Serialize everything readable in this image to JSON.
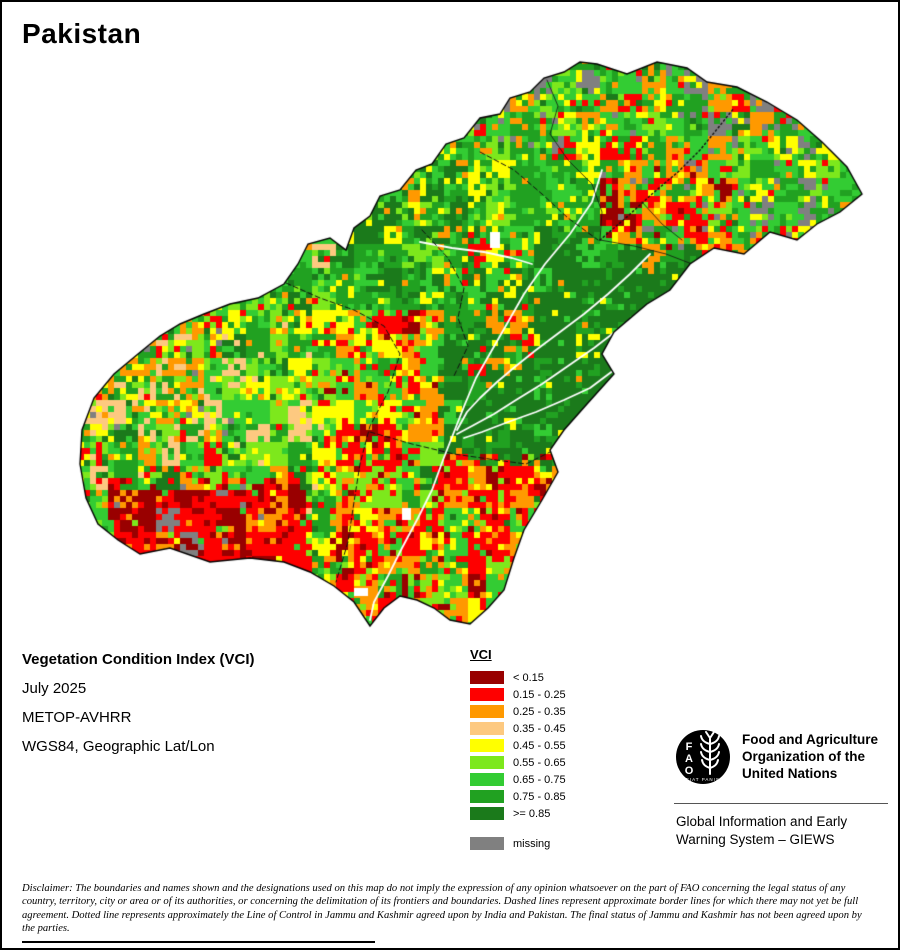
{
  "title": "Pakistan",
  "info": {
    "index_name": "Vegetation Condition Index (VCI)",
    "date": "July 2025",
    "sensor": "METOP-AVHRR",
    "projection": "WGS84, Geographic Lat/Lon"
  },
  "legend": {
    "title": "VCI",
    "entries": [
      {
        "label": "< 0.15",
        "color": "#990000"
      },
      {
        "label": "0.15 - 0.25",
        "color": "#fe0000"
      },
      {
        "label": "0.25 - 0.35",
        "color": "#ff9900"
      },
      {
        "label": "0.35 - 0.45",
        "color": "#fdc980"
      },
      {
        "label": "0.45 - 0.55",
        "color": "#ffff00"
      },
      {
        "label": "0.55 - 0.65",
        "color": "#7de81c"
      },
      {
        "label": "0.65 - 0.75",
        "color": "#33cc33"
      },
      {
        "label": "0.75 - 0.85",
        "color": "#21a121"
      },
      {
        "label": ">= 0.85",
        "color": "#1b7a1b"
      }
    ],
    "missing": {
      "label": "missing",
      "color": "#808080"
    }
  },
  "org": {
    "logo_letters": [
      "F",
      "A",
      "O"
    ],
    "logo_motto": "FIAT PANIS",
    "fao_lines": [
      "Food and Agriculture",
      "Organization of the",
      "United Nations"
    ],
    "giews_lines": [
      "Global Information and Early",
      "Warning System – GIEWS"
    ]
  },
  "disclaimer": "Disclaimer: The boundaries and names shown and the designations used on this map do not imply the expression of any opinion whatsoever on the part of FAO concerning the legal status of any country, territory, city or area or of its authorities, or concerning the delimitation of its frontiers and boundaries. Dashed lines represent approximate border lines for which there may not yet be full agreement. Dotted line represents approximately the Line of Control in Jammu and Kashmir agreed upon by India and Pakistan. The final status of Jammu and Kashmir has not been agreed upon by the parties."
}
